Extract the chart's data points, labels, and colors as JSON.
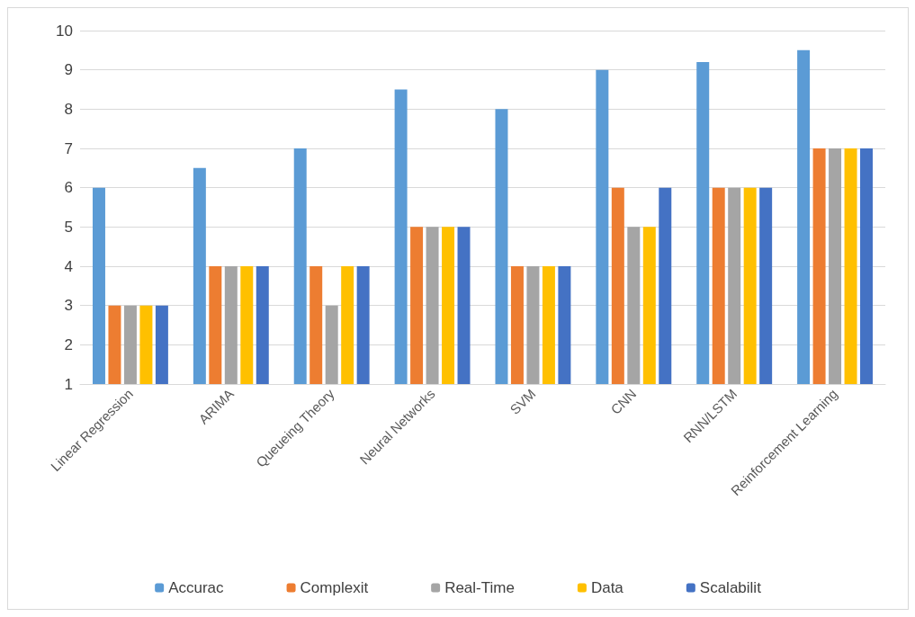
{
  "chart_data": {
    "type": "bar",
    "categories": [
      "Linear Regression",
      "ARIMA",
      "Queueing Theory",
      "Neural Networks",
      "SVM",
      "CNN",
      "RNN/LSTM",
      "Reinforcement Learning"
    ],
    "series": [
      {
        "name": "Accurac",
        "color": "#5b9bd5",
        "values": [
          6,
          6.5,
          7,
          8.5,
          8,
          9,
          9.2,
          9.5
        ]
      },
      {
        "name": "Complexit",
        "color": "#ed7d31",
        "values": [
          3,
          4,
          4,
          5,
          4,
          6,
          6,
          7
        ]
      },
      {
        "name": "Real-Time",
        "color": "#a5a5a5",
        "values": [
          3,
          4,
          3,
          5,
          4,
          5,
          6,
          7
        ]
      },
      {
        "name": "Data",
        "color": "#ffc000",
        "values": [
          3,
          4,
          4,
          5,
          4,
          5,
          6,
          7
        ]
      },
      {
        "name": "Scalabilit",
        "color": "#4472c4",
        "values": [
          3,
          4,
          4,
          5,
          4,
          6,
          6,
          7
        ]
      }
    ],
    "ylim": [
      1,
      10
    ],
    "yticks": [
      1,
      2,
      3,
      4,
      5,
      6,
      7,
      8,
      9,
      10
    ],
    "grid": "y",
    "legend": "bottom"
  }
}
